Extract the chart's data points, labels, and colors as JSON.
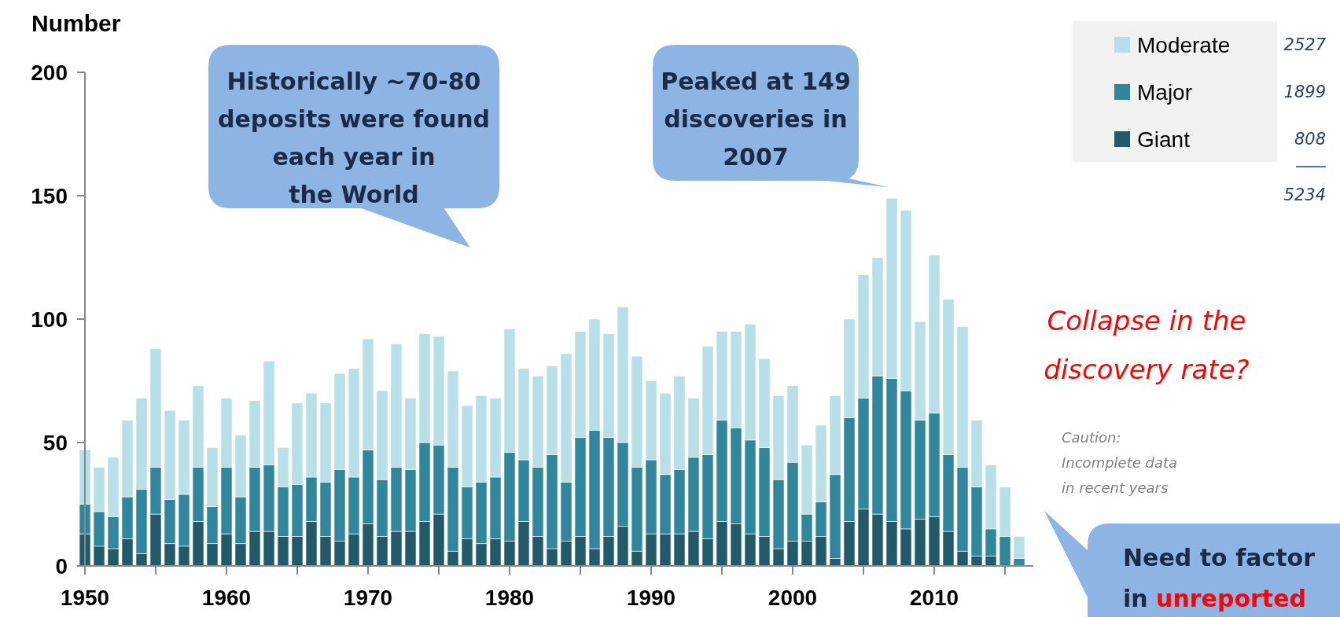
{
  "chart_data": {
    "type": "bar",
    "stacked": true,
    "ylabel": "Number",
    "x": [
      1950,
      1951,
      1952,
      1953,
      1954,
      1955,
      1956,
      1957,
      1958,
      1959,
      1960,
      1961,
      1962,
      1963,
      1964,
      1965,
      1966,
      1967,
      1968,
      1969,
      1970,
      1971,
      1972,
      1973,
      1974,
      1975,
      1976,
      1977,
      1978,
      1979,
      1980,
      1981,
      1982,
      1983,
      1984,
      1985,
      1986,
      1987,
      1988,
      1989,
      1990,
      1991,
      1992,
      1993,
      1994,
      1995,
      1996,
      1997,
      1998,
      1999,
      2000,
      2001,
      2002,
      2003,
      2004,
      2005,
      2006,
      2007,
      2008,
      2009,
      2010,
      2011,
      2012,
      2013,
      2014,
      2015,
      2016
    ],
    "series": [
      {
        "name": "Giant",
        "color": "#235a6a",
        "values": [
          13,
          8,
          7,
          11,
          5,
          21,
          9,
          8,
          18,
          9,
          13,
          9,
          14,
          14,
          12,
          12,
          18,
          12,
          10,
          13,
          17,
          12,
          14,
          14,
          18,
          21,
          6,
          11,
          9,
          11,
          10,
          18,
          12,
          7,
          10,
          12,
          7,
          12,
          16,
          6,
          13,
          13,
          13,
          14,
          11,
          18,
          17,
          13,
          12,
          7,
          10,
          10,
          12,
          3,
          18,
          23,
          21,
          18,
          15,
          19,
          20,
          14,
          6,
          4,
          4,
          null,
          0
        ]
      },
      {
        "name": "Major",
        "color": "#31869b",
        "values": [
          12,
          14,
          13,
          17,
          26,
          19,
          18,
          21,
          22,
          15,
          27,
          19,
          26,
          27,
          20,
          21,
          18,
          22,
          29,
          23,
          30,
          23,
          26,
          25,
          32,
          28,
          34,
          21,
          25,
          25,
          36,
          25,
          28,
          38,
          24,
          40,
          48,
          40,
          34,
          34,
          30,
          24,
          26,
          30,
          34,
          41,
          39,
          38,
          36,
          28,
          32,
          11,
          14,
          34,
          42,
          45,
          56,
          58,
          56,
          40,
          42,
          31,
          34,
          28,
          11,
          12,
          3
        ]
      },
      {
        "name": "Moderate",
        "color": "#b8dee8",
        "values": [
          22,
          18,
          24,
          31,
          37,
          48,
          36,
          30,
          33,
          24,
          28,
          25,
          27,
          42,
          16,
          33,
          34,
          32,
          39,
          44,
          45,
          36,
          50,
          29,
          44,
          44,
          39,
          33,
          35,
          32,
          50,
          37,
          37,
          36,
          52,
          43,
          45,
          42,
          55,
          45,
          32,
          33,
          38,
          24,
          44,
          36,
          39,
          47,
          36,
          34,
          31,
          28,
          31,
          32,
          40,
          50,
          48,
          73,
          73,
          40,
          64,
          63,
          57,
          27,
          26,
          20,
          9
        ]
      }
    ],
    "xlim": [
      1950,
      2017
    ],
    "xticks": [
      1950,
      {
        "value": 1955,
        "label": null
      },
      1960,
      {
        "value": 1965,
        "label": null
      },
      1970,
      {
        "value": 1975,
        "label": null
      },
      1980,
      {
        "value": 1985,
        "label": null
      },
      1990,
      {
        "value": 1995,
        "label": null
      },
      2000,
      {
        "value": 2005,
        "label": null
      },
      2010,
      {
        "value": 2015,
        "label": null
      }
    ],
    "ylim": [
      0,
      200
    ],
    "yticks": [
      0,
      50,
      100,
      150,
      200
    ],
    "legend": "top right",
    "grid": false,
    "annotations": [
      "Historically ~70-80 deposits were found each year in the World",
      {
        "text": "Peaked at 149 discoveries in 2007",
        "x": 2007,
        "y": 149
      },
      "Collapse in the discovery rate?",
      "Caution: Incomplete data in recent years",
      "Need to factor in unreported",
      "2527",
      "1899",
      "808",
      "5234"
    ]
  }
}
